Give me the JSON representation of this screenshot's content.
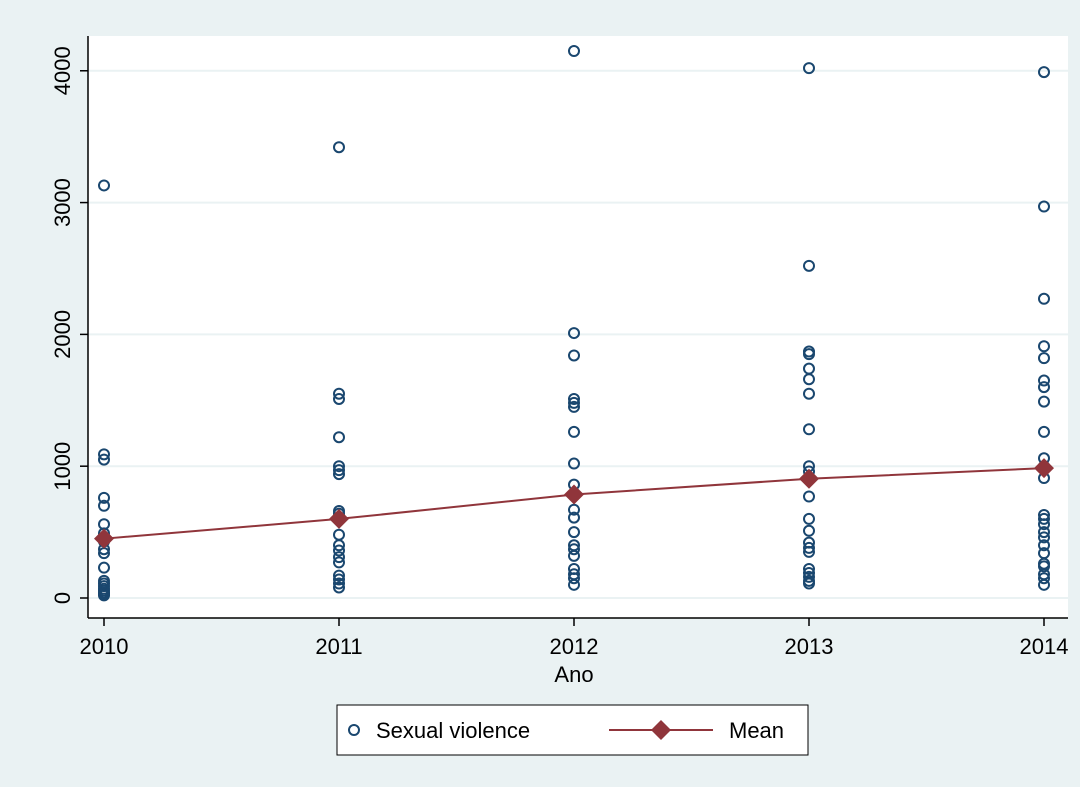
{
  "chart_data": {
    "type": "scatter",
    "title": "",
    "xlabel": "Ano",
    "ylabel": "",
    "xlim": [
      2010,
      2014
    ],
    "ylim": [
      0,
      4150
    ],
    "x_ticks": [
      "2010",
      "2011",
      "2012",
      "2013",
      "2014"
    ],
    "y_ticks": [
      "0",
      "1000",
      "2000",
      "3000",
      "4000"
    ],
    "grid": true,
    "legend_position": "bottom",
    "colors": {
      "scatter": "#1a476f",
      "mean": "#90353b",
      "plot_bg": "#ffffff",
      "outer_bg": "#eaf2f3",
      "grid": "#eaf2f3"
    },
    "series": [
      {
        "name": "Sexual violence",
        "type": "scatter",
        "points": [
          [
            2010,
            3130
          ],
          [
            2010,
            1090
          ],
          [
            2010,
            1050
          ],
          [
            2010,
            760
          ],
          [
            2010,
            700
          ],
          [
            2010,
            560
          ],
          [
            2010,
            490
          ],
          [
            2010,
            430
          ],
          [
            2010,
            370
          ],
          [
            2010,
            340
          ],
          [
            2010,
            230
          ],
          [
            2010,
            130
          ],
          [
            2010,
            110
          ],
          [
            2010,
            90
          ],
          [
            2010,
            70
          ],
          [
            2010,
            55
          ],
          [
            2010,
            40
          ],
          [
            2010,
            30
          ],
          [
            2010,
            20
          ],
          [
            2011,
            3420
          ],
          [
            2011,
            1550
          ],
          [
            2011,
            1510
          ],
          [
            2011,
            1220
          ],
          [
            2011,
            1000
          ],
          [
            2011,
            970
          ],
          [
            2011,
            940
          ],
          [
            2011,
            660
          ],
          [
            2011,
            640
          ],
          [
            2011,
            480
          ],
          [
            2011,
            400
          ],
          [
            2011,
            360
          ],
          [
            2011,
            310
          ],
          [
            2011,
            270
          ],
          [
            2011,
            170
          ],
          [
            2011,
            140
          ],
          [
            2011,
            110
          ],
          [
            2011,
            80
          ],
          [
            2012,
            4150
          ],
          [
            2012,
            2010
          ],
          [
            2012,
            1840
          ],
          [
            2012,
            1510
          ],
          [
            2012,
            1480
          ],
          [
            2012,
            1450
          ],
          [
            2012,
            1260
          ],
          [
            2012,
            1020
          ],
          [
            2012,
            860
          ],
          [
            2012,
            670
          ],
          [
            2012,
            610
          ],
          [
            2012,
            500
          ],
          [
            2012,
            400
          ],
          [
            2012,
            370
          ],
          [
            2012,
            320
          ],
          [
            2012,
            220
          ],
          [
            2012,
            180
          ],
          [
            2012,
            150
          ],
          [
            2012,
            100
          ],
          [
            2013,
            4020
          ],
          [
            2013,
            2520
          ],
          [
            2013,
            1870
          ],
          [
            2013,
            1850
          ],
          [
            2013,
            1740
          ],
          [
            2013,
            1660
          ],
          [
            2013,
            1550
          ],
          [
            2013,
            1280
          ],
          [
            2013,
            1000
          ],
          [
            2013,
            960
          ],
          [
            2013,
            770
          ],
          [
            2013,
            600
          ],
          [
            2013,
            510
          ],
          [
            2013,
            420
          ],
          [
            2013,
            380
          ],
          [
            2013,
            350
          ],
          [
            2013,
            220
          ],
          [
            2013,
            190
          ],
          [
            2013,
            160
          ],
          [
            2013,
            130
          ],
          [
            2013,
            110
          ],
          [
            2014,
            3990
          ],
          [
            2014,
            2970
          ],
          [
            2014,
            2270
          ],
          [
            2014,
            1910
          ],
          [
            2014,
            1820
          ],
          [
            2014,
            1650
          ],
          [
            2014,
            1600
          ],
          [
            2014,
            1490
          ],
          [
            2014,
            1260
          ],
          [
            2014,
            1060
          ],
          [
            2014,
            1000
          ],
          [
            2014,
            910
          ],
          [
            2014,
            630
          ],
          [
            2014,
            600
          ],
          [
            2014,
            560
          ],
          [
            2014,
            500
          ],
          [
            2014,
            460
          ],
          [
            2014,
            400
          ],
          [
            2014,
            340
          ],
          [
            2014,
            260
          ],
          [
            2014,
            240
          ],
          [
            2014,
            180
          ],
          [
            2014,
            150
          ],
          [
            2014,
            100
          ]
        ]
      },
      {
        "name": "Mean",
        "type": "line",
        "x": [
          2010,
          2011,
          2012,
          2013,
          2014
        ],
        "values": [
          450,
          600,
          785,
          905,
          985
        ]
      }
    ]
  }
}
